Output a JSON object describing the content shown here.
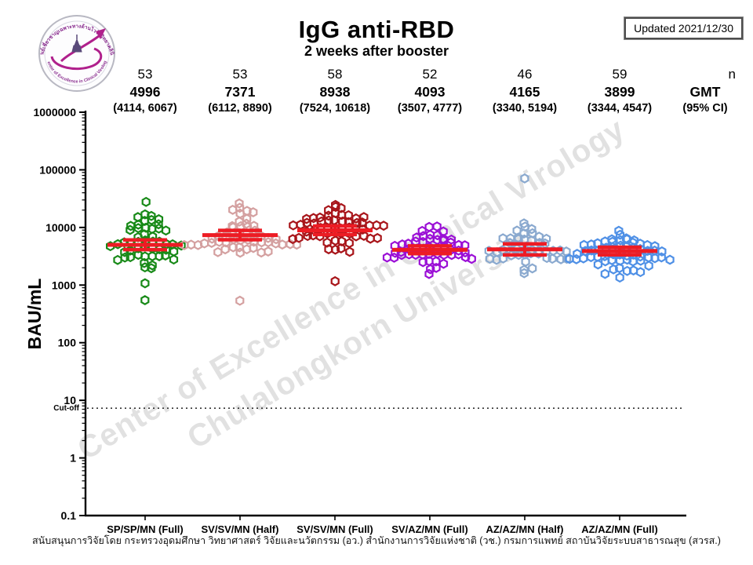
{
  "title": "IgG anti-RBD",
  "subtitle": "2 weeks after booster",
  "updated_label": "Updated 2021/12/30",
  "logo": {
    "ring_top": "ศูนย์เชี่ยวชาญเฉพาะทางด้านไวรัสวิทยาคลินิก",
    "ring_bottom": "Center of Excellence in Clinical Virology"
  },
  "header": {
    "n_label": "n",
    "gmt_label": "GMT",
    "ci_label": "(95% CI)"
  },
  "ylabel": "BAU/mL",
  "cutoff_label": "Cut-off",
  "watermark": {
    "line1": "Center of Excellence in Clinical Virology",
    "line2": "Chulalongkorn University"
  },
  "footer": "สนับสนุนการวิจัยโดย กระทรวงอุดมศึกษา วิทยาศาสตร์ วิจัยและนวัตกรรม (อว.) สำนักงานการวิจัยแห่งชาติ (วช.) กรมการแพทย์ สถาบันวิจัยระบบสาธารณสุข (สวรส.)",
  "chart_data": {
    "type": "scatter",
    "subtype": "log-beeswarm-with-geometric-mean-and-ci",
    "title": "IgG anti-RBD",
    "subtitle": "2 weeks after booster",
    "ylabel": "BAU/mL",
    "yscale": "log10",
    "ylim": [
      0.1,
      1000000
    ],
    "yticks": [
      "0.1",
      "1",
      "10",
      "100",
      "1000",
      "10000",
      "100000",
      "1000000"
    ],
    "cutoff_value": 7.3,
    "mean_color": "#ed1c24",
    "legend": "red bars = GMT with 95% CI",
    "categories": [
      "SP/SP/MN (Full)",
      "SV/SV/MN (Half)",
      "SV/SV/MN (Full)",
      "SV/AZ/MN (Full)",
      "AZ/AZ/MN (Half)",
      "AZ/AZ/MN (Full)"
    ],
    "groups": [
      {
        "label": "SP/SP/MN (Full)",
        "n": 53,
        "gmt": 4996,
        "ci": [
          4114,
          6067
        ],
        "ci_text": "(4114, 6067)",
        "color": "#188a18",
        "min": 1500,
        "max": 28000,
        "sd_log": 0.24,
        "outliers": [
          560,
          1050
        ],
        "seed": 11
      },
      {
        "label": "SV/SV/MN (Half)",
        "n": 53,
        "gmt": 7371,
        "ci": [
          6112,
          8890
        ],
        "ci_text": "(6112, 8890)",
        "color": "#d4a0a0",
        "min": 2300,
        "max": 43000,
        "sd_log": 0.22,
        "outliers": [
          540
        ],
        "seed": 22
      },
      {
        "label": "SV/SV/MN (Full)",
        "n": 58,
        "gmt": 8938,
        "ci": [
          7524,
          10618
        ],
        "ci_text": "(7524, 10618)",
        "color": "#a8151a",
        "min": 2600,
        "max": 50000,
        "sd_log": 0.22,
        "outliers": [
          1150
        ],
        "seed": 33
      },
      {
        "label": "SV/AZ/MN (Full)",
        "n": 52,
        "gmt": 4093,
        "ci": [
          3507,
          4777
        ],
        "ci_text": "(3507, 4777)",
        "color": "#9b10d6",
        "min": 1900,
        "max": 11000,
        "sd_log": 0.17,
        "outliers": [
          1500
        ],
        "seed": 44
      },
      {
        "label": "AZ/AZ/MN (Half)",
        "n": 46,
        "gmt": 4165,
        "ci": [
          3340,
          5194
        ],
        "ci_text": "(3340, 5194)",
        "color": "#8aa9cf",
        "min": 1500,
        "max": 12000,
        "sd_log": 0.2,
        "outliers": [
          70000
        ],
        "seed": 55
      },
      {
        "label": "AZ/AZ/MN (Full)",
        "n": 59,
        "gmt": 3899,
        "ci": [
          3344,
          4547
        ],
        "ci_text": "(3344, 4547)",
        "color": "#4f90e6",
        "min": 760,
        "max": 14500,
        "sd_log": 0.2,
        "outliers": [],
        "seed": 66
      }
    ]
  }
}
